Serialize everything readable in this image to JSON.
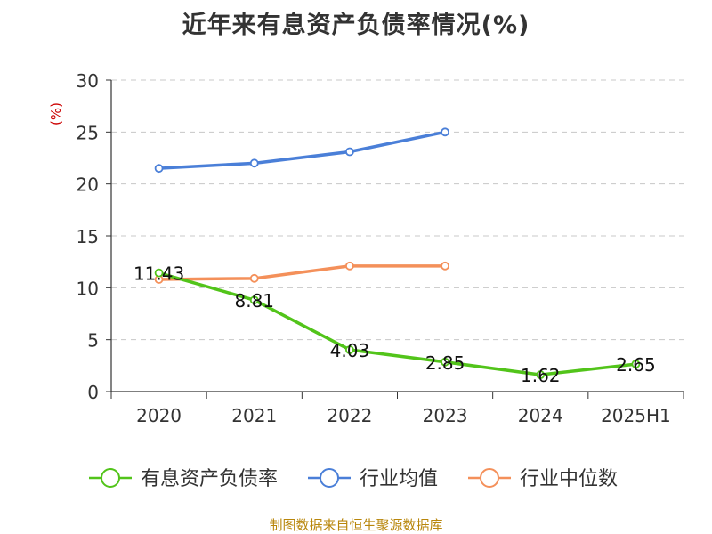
{
  "chart_data": {
    "type": "line",
    "title": "近年来有息资产负债率情况(%)",
    "ylabel": "(%)",
    "categories": [
      "2020",
      "2021",
      "2022",
      "2023",
      "2024",
      "2025H1"
    ],
    "ylim": [
      0,
      30
    ],
    "yticks": [
      0,
      5,
      10,
      15,
      20,
      25,
      30
    ],
    "grid": true,
    "legend_position": "bottom",
    "series": [
      {
        "name": "有息资产负债率",
        "color": "#52c41a",
        "values": [
          11.43,
          8.81,
          4.03,
          2.85,
          1.62,
          2.65
        ],
        "show_labels": true
      },
      {
        "name": "行业均值",
        "color": "#4a7fd8",
        "values": [
          21.5,
          22.0,
          23.1,
          25.0,
          null,
          null
        ],
        "show_labels": false
      },
      {
        "name": "行业中位数",
        "color": "#f4905a",
        "values": [
          10.8,
          10.9,
          12.1,
          12.1,
          null,
          null
        ],
        "show_labels": false
      }
    ]
  },
  "source": "制图数据来自恒生聚源数据库"
}
